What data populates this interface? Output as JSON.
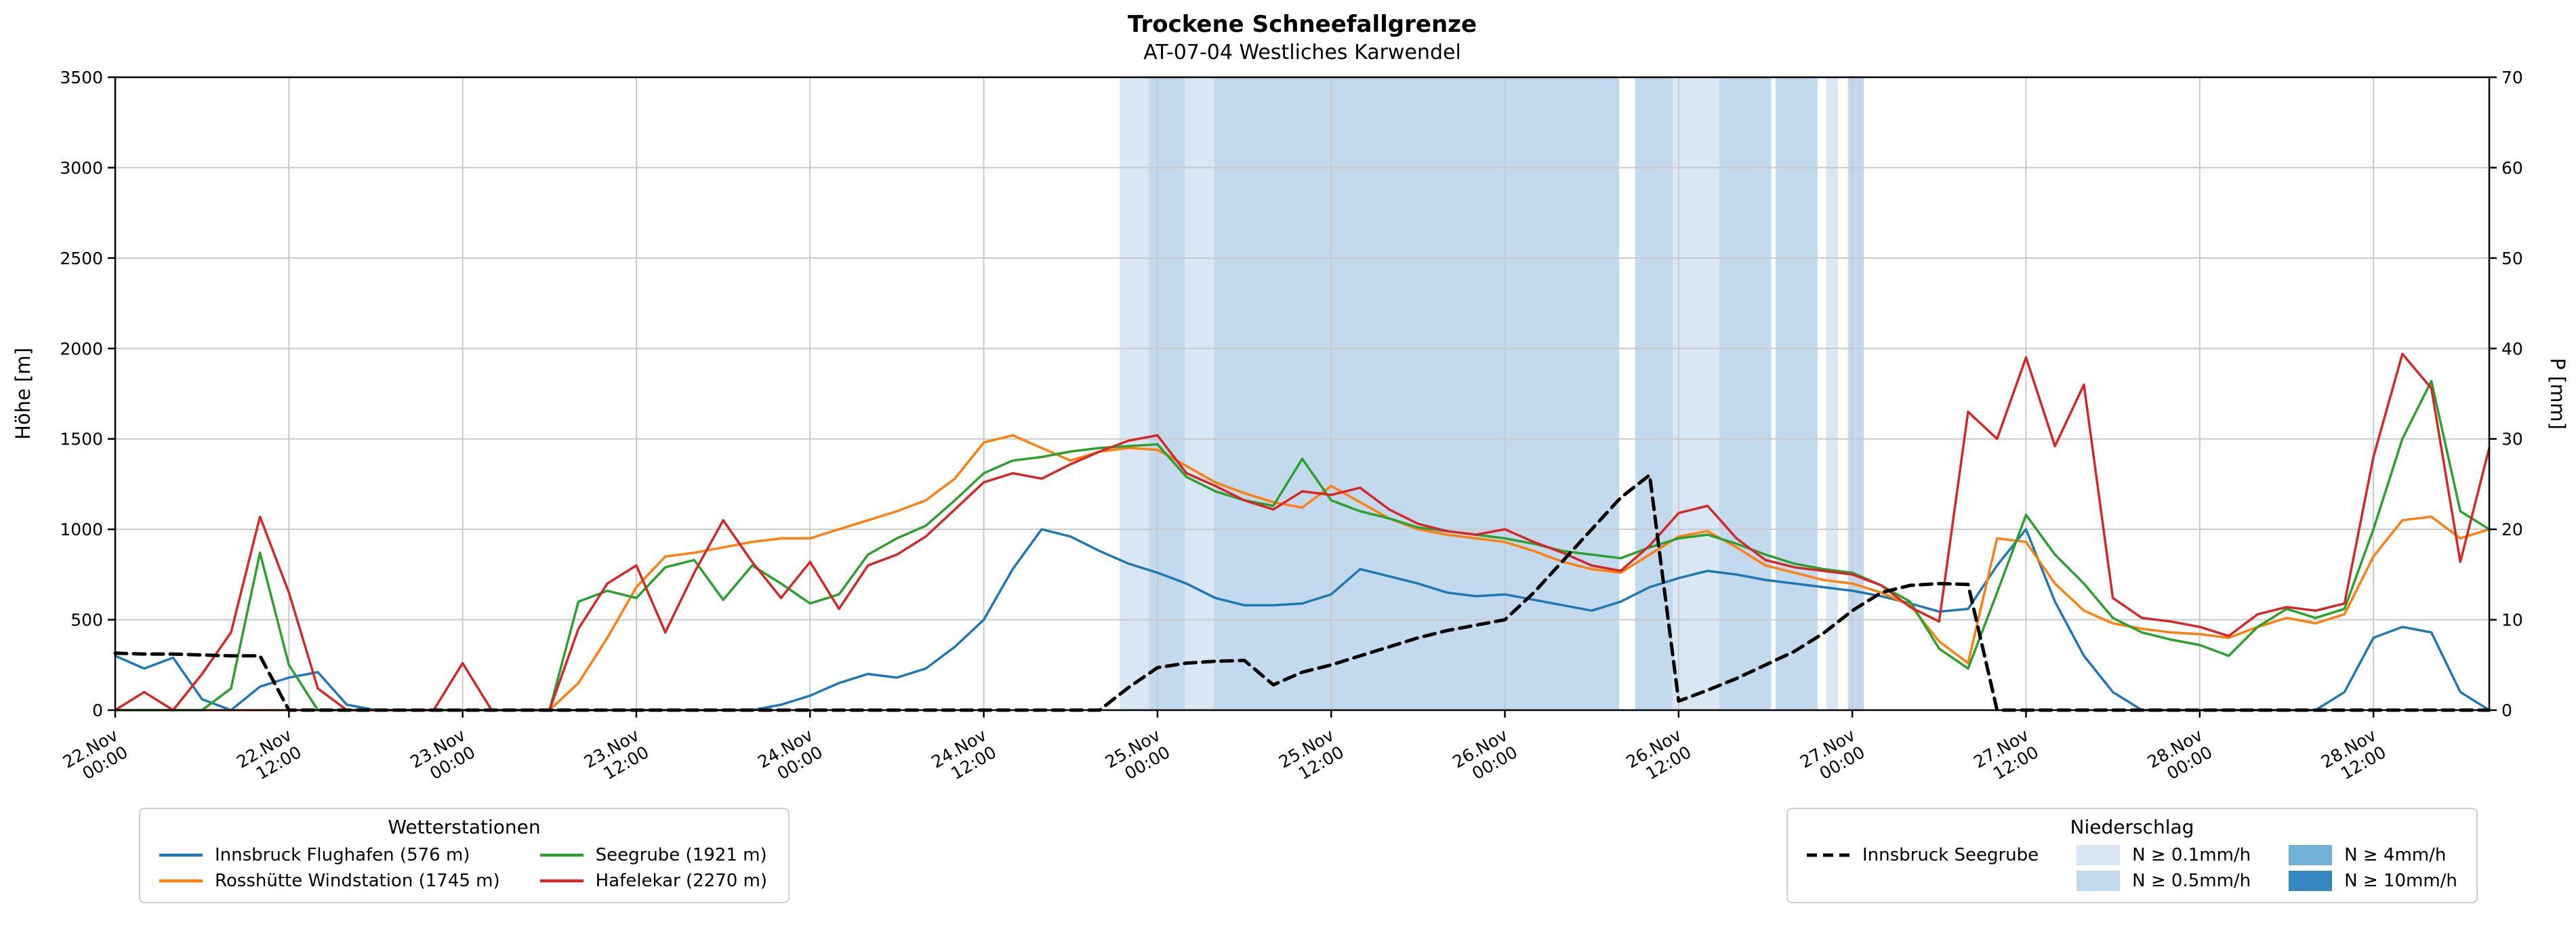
{
  "chart_data": {
    "type": "line",
    "title": "Trockene Schneefallgrenze",
    "subtitle": "AT-07-04 Westliches Karwendel",
    "grid": true,
    "y_left": {
      "label": "Höhe [m]",
      "min": 0,
      "max": 3500,
      "ticks": [
        0,
        500,
        1000,
        1500,
        2000,
        2500,
        3000,
        3500
      ]
    },
    "y_right": {
      "label": "P [mm]",
      "min": 0,
      "max": 70,
      "ticks": [
        0,
        10,
        20,
        30,
        40,
        50,
        60,
        70
      ]
    },
    "x": {
      "unit": "hours since 22 Nov 00:00",
      "min_hours": 0,
      "max_hours": 164,
      "tick_interval_hours": 12,
      "tick_labels": [
        [
          "22.Nov",
          "00:00"
        ],
        [
          "22.Nov",
          "12:00"
        ],
        [
          "23.Nov",
          "00:00"
        ],
        [
          "23.Nov",
          "12:00"
        ],
        [
          "24.Nov",
          "00:00"
        ],
        [
          "24.Nov",
          "12:00"
        ],
        [
          "25.Nov",
          "00:00"
        ],
        [
          "25.Nov",
          "12:00"
        ],
        [
          "26.Nov",
          "00:00"
        ],
        [
          "26.Nov",
          "12:00"
        ],
        [
          "27.Nov",
          "00:00"
        ],
        [
          "27.Nov",
          "12:00"
        ],
        [
          "28.Nov",
          "00:00"
        ],
        [
          "28.Nov",
          "12:00"
        ]
      ]
    },
    "x_hours": [
      0,
      2,
      4,
      6,
      8,
      10,
      12,
      14,
      16,
      18,
      20,
      22,
      24,
      26,
      28,
      30,
      32,
      34,
      36,
      38,
      40,
      42,
      44,
      46,
      48,
      50,
      52,
      54,
      56,
      58,
      60,
      62,
      64,
      66,
      68,
      70,
      72,
      74,
      76,
      78,
      80,
      82,
      84,
      86,
      88,
      90,
      92,
      94,
      96,
      98,
      100,
      102,
      104,
      106,
      108,
      110,
      112,
      114,
      116,
      118,
      120,
      122,
      124,
      126,
      128,
      130,
      132,
      134,
      136,
      138,
      140,
      142,
      144,
      146,
      148,
      150,
      152,
      154,
      156,
      158,
      160,
      162,
      164
    ],
    "series": [
      {
        "name": "Innsbruck Flughafen (576 m)",
        "color": "#1f77b4",
        "style": "solid",
        "axis": "left",
        "values": [
          300,
          230,
          290,
          60,
          0,
          130,
          180,
          210,
          30,
          0,
          0,
          0,
          0,
          0,
          0,
          0,
          0,
          0,
          0,
          0,
          0,
          0,
          0,
          30,
          80,
          150,
          200,
          180,
          230,
          350,
          500,
          780,
          1000,
          960,
          880,
          810,
          760,
          700,
          620,
          580,
          580,
          590,
          640,
          780,
          740,
          700,
          650,
          630,
          640,
          610,
          580,
          550,
          600,
          680,
          730,
          770,
          750,
          720,
          700,
          680,
          660,
          630,
          590,
          545,
          560,
          800,
          1000,
          600,
          300,
          100,
          0,
          0,
          0,
          0,
          0,
          0,
          0,
          100,
          400,
          460,
          430,
          100,
          0
        ]
      },
      {
        "name": "Rosshütte Windstation (1745 m)",
        "color": "#ff7f0e",
        "style": "solid",
        "axis": "left",
        "values": [
          0,
          0,
          0,
          0,
          0,
          0,
          0,
          0,
          0,
          0,
          0,
          0,
          0,
          0,
          0,
          0,
          150,
          400,
          680,
          850,
          870,
          900,
          930,
          950,
          950,
          1000,
          1050,
          1100,
          1160,
          1280,
          1480,
          1520,
          1450,
          1380,
          1430,
          1450,
          1440,
          1350,
          1260,
          1200,
          1150,
          1120,
          1240,
          1150,
          1060,
          1000,
          970,
          950,
          930,
          880,
          820,
          780,
          760,
          860,
          960,
          990,
          900,
          800,
          760,
          720,
          700,
          650,
          580,
          380,
          260,
          950,
          930,
          700,
          550,
          480,
          450,
          430,
          420,
          400,
          460,
          510,
          480,
          530,
          850,
          1050,
          1070,
          950,
          1000
        ]
      },
      {
        "name": "Seegrube (1921 m)",
        "color": "#2ca02c",
        "style": "solid",
        "axis": "left",
        "values": [
          0,
          0,
          0,
          0,
          120,
          870,
          250,
          0,
          0,
          0,
          0,
          0,
          0,
          0,
          0,
          0,
          600,
          660,
          620,
          790,
          830,
          610,
          800,
          700,
          590,
          640,
          860,
          950,
          1020,
          1160,
          1310,
          1380,
          1400,
          1430,
          1450,
          1460,
          1470,
          1290,
          1210,
          1160,
          1130,
          1390,
          1160,
          1100,
          1060,
          1010,
          990,
          970,
          950,
          920,
          880,
          860,
          840,
          900,
          950,
          970,
          920,
          860,
          810,
          780,
          760,
          690,
          600,
          340,
          230,
          650,
          1080,
          860,
          700,
          510,
          430,
          390,
          360,
          300,
          460,
          560,
          510,
          560,
          1000,
          1500,
          1820,
          1100,
          1000
        ]
      },
      {
        "name": "Hafelekar (2270 m)",
        "color": "#d62728",
        "style": "solid",
        "axis": "left",
        "values": [
          0,
          100,
          0,
          200,
          430,
          1070,
          650,
          120,
          0,
          0,
          0,
          0,
          260,
          0,
          0,
          0,
          450,
          700,
          800,
          430,
          760,
          1050,
          820,
          620,
          820,
          560,
          800,
          860,
          960,
          1110,
          1260,
          1310,
          1280,
          1360,
          1430,
          1490,
          1520,
          1310,
          1240,
          1160,
          1110,
          1210,
          1190,
          1230,
          1110,
          1030,
          990,
          970,
          1000,
          930,
          870,
          800,
          770,
          910,
          1090,
          1130,
          950,
          830,
          790,
          770,
          750,
          690,
          570,
          490,
          1650,
          1500,
          1950,
          1460,
          1800,
          620,
          510,
          490,
          460,
          410,
          530,
          570,
          550,
          590,
          1400,
          1970,
          1780,
          820,
          1450
        ]
      },
      {
        "name": "Innsbruck Seegrube",
        "color": "#000000",
        "style": "dashed",
        "axis": "right",
        "values": [
          6.3,
          6.2,
          6.2,
          6.1,
          6.0,
          6.0,
          0,
          0,
          0,
          0,
          0,
          0,
          0,
          0,
          0,
          0,
          0,
          0,
          0,
          0,
          0,
          0,
          0,
          0,
          0,
          0,
          0,
          0,
          0,
          0,
          0,
          0,
          0,
          0,
          0,
          2.5,
          4.7,
          5.2,
          5.4,
          5.5,
          2.8,
          4.2,
          5.0,
          6.0,
          7.0,
          8.0,
          8.8,
          9.4,
          10.0,
          13.0,
          16.5,
          20.0,
          23.5,
          26.0,
          1.0,
          2.2,
          3.5,
          5.0,
          6.5,
          8.5,
          11.0,
          13.0,
          13.8,
          14.0,
          13.9,
          0,
          0,
          0,
          0,
          0,
          0,
          0,
          0,
          0,
          0,
          0,
          0,
          0,
          0,
          0,
          0,
          0,
          0
        ]
      }
    ],
    "precip_bands": {
      "levels": [
        {
          "level": "0.1",
          "label": "N ≥ 0.1mm/h",
          "color": "#d9e7f5"
        },
        {
          "level": "0.5",
          "label": "N ≥ 0.5mm/h",
          "color": "#c3d9ee"
        },
        {
          "level": "4",
          "label": "N ≥ 4mm/h",
          "color": "#71b1d7"
        },
        {
          "level": "10",
          "label": "N ≥ 10mm/h",
          "color": "#3787c0"
        }
      ],
      "bands": [
        {
          "start": 69.4,
          "end": 71.4,
          "level": "0.1"
        },
        {
          "start": 71.4,
          "end": 73.9,
          "level": "0.5"
        },
        {
          "start": 73.9,
          "end": 75.9,
          "level": "0.1"
        },
        {
          "start": 75.9,
          "end": 103.9,
          "level": "0.5"
        },
        {
          "start": 105.0,
          "end": 107.6,
          "level": "0.5"
        },
        {
          "start": 107.6,
          "end": 110.8,
          "level": "0.1"
        },
        {
          "start": 110.8,
          "end": 114.4,
          "level": "0.5"
        },
        {
          "start": 114.7,
          "end": 117.6,
          "level": "0.5"
        },
        {
          "start": 118.2,
          "end": 119.0,
          "level": "0.1"
        },
        {
          "start": 119.7,
          "end": 120.8,
          "level": "0.5"
        }
      ]
    },
    "legends": {
      "stations_title": "Wetterstationen",
      "precip_title": "Niederschlag"
    }
  }
}
